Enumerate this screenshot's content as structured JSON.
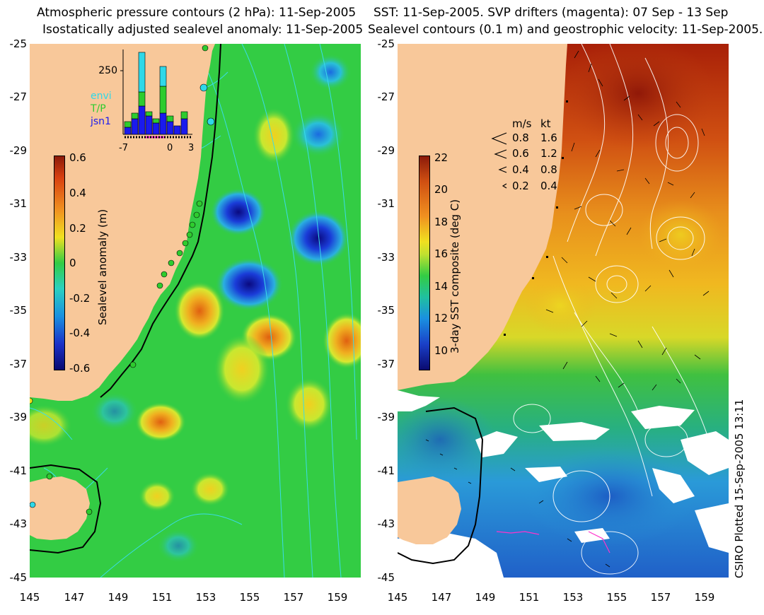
{
  "left_panel": {
    "title_line1": "Atmospheric pressure contours (2 hPa): 11-Sep-2005",
    "title_line2": "Isostatically adjusted sealevel anomaly: 11-Sep-2005",
    "colorbar": {
      "title": "Sealevel anomaly (m)",
      "ticks": [
        "0.6",
        "0.4",
        "0.2",
        "0",
        "-0.2",
        "-0.4",
        "-0.6"
      ]
    },
    "histogram": {
      "ymax_label": "250",
      "x_ticks": [
        "-7",
        "0",
        "3"
      ],
      "legend": [
        "envi",
        "T/P",
        "jsn1"
      ],
      "legend_colors": [
        "#2fd8e8",
        "#2ecc2e",
        "#1a1aee"
      ]
    }
  },
  "right_panel": {
    "title_line1": "SST: 11-Sep-2005. SVP drifters (magenta): 07 Sep - 13 Sep",
    "title_line2": "Sealevel contours (0.1 m) and geostrophic velocity: 11-Sep-2005.",
    "colorbar": {
      "title": "3-day SST composite (deg C)",
      "ticks": [
        "22",
        "20",
        "18",
        "16",
        "14",
        "12",
        "10"
      ]
    },
    "velocity_legend": {
      "header_ms": "m/s",
      "header_kt": "kt",
      "rows": [
        {
          "ms": "0.8",
          "kt": "1.6"
        },
        {
          "ms": "0.6",
          "kt": "1.2"
        },
        {
          "ms": "0.4",
          "kt": "0.8"
        },
        {
          "ms": "0.2",
          "kt": "0.4"
        }
      ]
    }
  },
  "axes": {
    "lat_ticks": [
      "-25",
      "-27",
      "-29",
      "-31",
      "-33",
      "-35",
      "-37",
      "-39",
      "-41",
      "-43",
      "-45"
    ],
    "lon_ticks": [
      "145",
      "147",
      "149",
      "151",
      "153",
      "155",
      "157",
      "159"
    ]
  },
  "footer": "CSIRO Plotted 15-Sep-2005 13:11",
  "colors": {
    "land": "#f8c89a",
    "sla_background": "#33cc44",
    "sst_warm": "#c8401a",
    "sst_cool": "#2a9ad8"
  }
}
